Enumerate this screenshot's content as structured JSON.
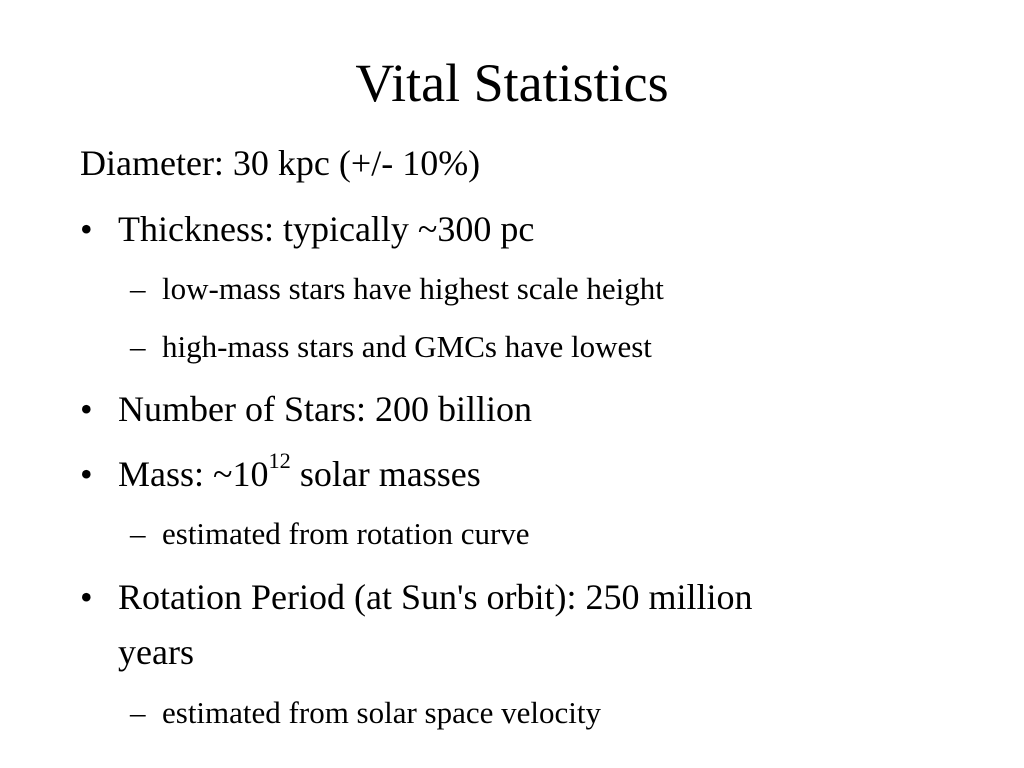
{
  "slide": {
    "title": "Vital Statistics",
    "diameter": "Diameter: 30 kpc (+/- 10%)",
    "bullet_char": "•",
    "dash_char": "–",
    "thickness": "Thickness:  typically ~300 pc",
    "thickness_sub1": "low-mass stars have highest scale height",
    "thickness_sub2": "high-mass stars and GMCs have lowest",
    "stars": "Number of Stars: 200 billion",
    "mass_prefix": "Mass: ~10",
    "mass_exponent": "12",
    "mass_suffix": " solar masses",
    "mass_sub1": "estimated from rotation curve",
    "rotation_line1": "Rotation Period (at Sun's orbit): 250 million",
    "rotation_line2": "years",
    "rotation_sub1": "estimated from solar space velocity"
  }
}
